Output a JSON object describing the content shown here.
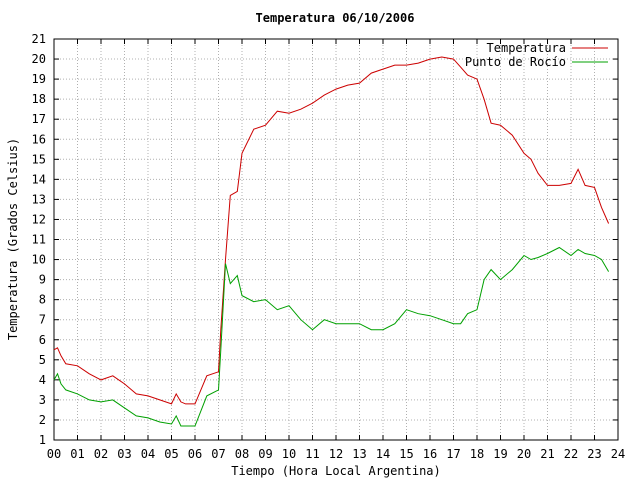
{
  "chart_data": {
    "type": "line",
    "title": "Temperatura 06/10/2006",
    "xlabel": "Tiempo (Hora Local Argentina)",
    "ylabel": "Temperatura (Grados Celsius)",
    "xlim": [
      0,
      24
    ],
    "ylim": [
      1,
      21
    ],
    "grid": true,
    "legend_position": "top-right",
    "x_tick_labels": [
      "00",
      "01",
      "02",
      "03",
      "04",
      "05",
      "06",
      "07",
      "08",
      "09",
      "10",
      "11",
      "12",
      "13",
      "14",
      "15",
      "16",
      "17",
      "18",
      "19",
      "20",
      "21",
      "22",
      "23",
      "24"
    ],
    "y_tick_labels": [
      "1",
      "2",
      "3",
      "4",
      "5",
      "6",
      "7",
      "8",
      "9",
      "10",
      "11",
      "12",
      "13",
      "14",
      "15",
      "16",
      "17",
      "18",
      "19",
      "20",
      "21"
    ],
    "series": [
      {
        "name": "Temperatura",
        "color": "#cc0000",
        "x": [
          0,
          0.15,
          0.3,
          0.5,
          1,
          1.5,
          2,
          2.5,
          3,
          3.5,
          4,
          4.5,
          5,
          5.2,
          5.4,
          5.6,
          6,
          6.5,
          7,
          7.1,
          7.3,
          7.5,
          7.8,
          8,
          8.5,
          9,
          9.5,
          10,
          10.5,
          11,
          11.5,
          12,
          12.5,
          13,
          13.5,
          14,
          14.5,
          15,
          15.5,
          16,
          16.5,
          17,
          17.3,
          17.6,
          18,
          18.3,
          18.6,
          19,
          19.5,
          20,
          20.3,
          20.6,
          21,
          21.5,
          22,
          22.3,
          22.6,
          23,
          23.3,
          23.6
        ],
        "y": [
          5.5,
          5.6,
          5.2,
          4.8,
          4.7,
          4.3,
          4.0,
          4.2,
          3.8,
          3.3,
          3.2,
          3.0,
          2.8,
          3.3,
          2.9,
          2.8,
          2.8,
          4.2,
          4.4,
          6.5,
          10.0,
          13.2,
          13.4,
          15.3,
          16.5,
          16.7,
          17.4,
          17.3,
          17.5,
          17.8,
          18.2,
          18.5,
          18.7,
          18.8,
          19.3,
          19.5,
          19.7,
          19.7,
          19.8,
          20.0,
          20.1,
          20.0,
          19.6,
          19.2,
          19.0,
          18.0,
          16.8,
          16.7,
          16.2,
          15.3,
          15.0,
          14.3,
          13.7,
          13.7,
          13.8,
          14.5,
          13.7,
          13.6,
          12.6,
          11.8
        ]
      },
      {
        "name": "Punto de Rocío",
        "color": "#00a000",
        "x": [
          0,
          0.15,
          0.3,
          0.5,
          1,
          1.5,
          2,
          2.5,
          3,
          3.5,
          4,
          4.5,
          5,
          5.2,
          5.4,
          5.6,
          6,
          6.5,
          7,
          7.1,
          7.3,
          7.5,
          7.8,
          8,
          8.5,
          9,
          9.5,
          10,
          10.5,
          11,
          11.5,
          12,
          12.5,
          13,
          13.5,
          14,
          14.5,
          15,
          15.5,
          16,
          16.5,
          17,
          17.3,
          17.6,
          18,
          18.3,
          18.6,
          19,
          19.5,
          20,
          20.3,
          20.6,
          21,
          21.5,
          22,
          22.3,
          22.6,
          23,
          23.3,
          23.6
        ],
        "y": [
          4.0,
          4.3,
          3.8,
          3.5,
          3.3,
          3.0,
          2.9,
          3.0,
          2.6,
          2.2,
          2.1,
          1.9,
          1.8,
          2.2,
          1.7,
          1.7,
          1.7,
          3.2,
          3.5,
          5.5,
          9.8,
          8.8,
          9.2,
          8.2,
          7.9,
          8.0,
          7.5,
          7.7,
          7.0,
          6.5,
          7.0,
          6.8,
          6.8,
          6.8,
          6.5,
          6.5,
          6.8,
          7.5,
          7.3,
          7.2,
          7.0,
          6.8,
          6.8,
          7.3,
          7.5,
          9.0,
          9.5,
          9.0,
          9.5,
          10.2,
          10.0,
          10.1,
          10.3,
          10.6,
          10.2,
          10.5,
          10.3,
          10.2,
          10.0,
          9.4
        ]
      }
    ]
  }
}
